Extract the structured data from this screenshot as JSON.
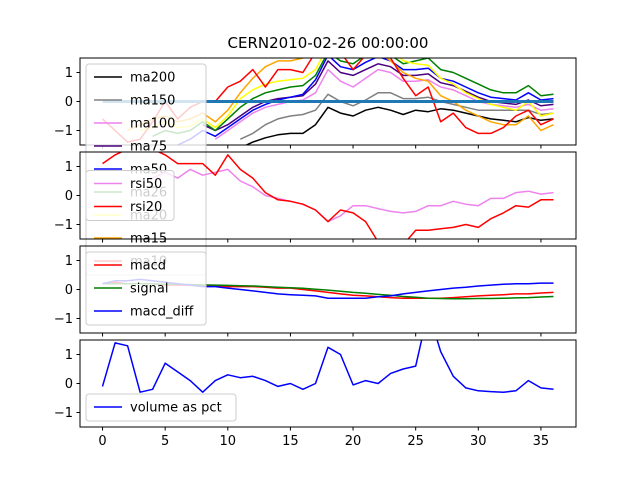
{
  "chart_data": {
    "title": "CERN2010-02-26 00:00:00",
    "x": [
      0,
      1,
      2,
      3,
      4,
      5,
      6,
      7,
      8,
      9,
      10,
      11,
      12,
      13,
      14,
      15,
      16,
      17,
      18,
      19,
      20,
      21,
      22,
      23,
      24,
      25,
      26,
      27,
      28,
      29,
      30,
      31,
      32,
      33,
      34,
      35,
      36
    ],
    "xticks": [
      0,
      5,
      10,
      15,
      20,
      25,
      30,
      35
    ],
    "xlim": [
      -1.8,
      37.8
    ],
    "panels": [
      {
        "type": "line",
        "ylim": [
          -1.5,
          1.5
        ],
        "yticks": [
          -1,
          0,
          1
        ],
        "legend": "upper-left",
        "series": [
          {
            "name": "ma200",
            "color": "#000000",
            "values": [
              null,
              null,
              null,
              null,
              null,
              null,
              null,
              null,
              null,
              null,
              -1.8,
              -1.6,
              -1.4,
              -1.25,
              -1.15,
              -1.1,
              -1.1,
              -0.8,
              -0.2,
              -0.4,
              -0.5,
              -0.3,
              -0.2,
              -0.3,
              -0.45,
              -0.3,
              -0.35,
              -0.25,
              -0.3,
              -0.4,
              -0.5,
              -0.6,
              -0.65,
              -0.7,
              -0.55,
              -0.65,
              -0.6
            ]
          },
          {
            "name": "ma150",
            "color": "#808080",
            "values": [
              null,
              null,
              null,
              null,
              null,
              null,
              null,
              null,
              null,
              null,
              null,
              -1.3,
              -1.1,
              -0.8,
              -0.6,
              -0.5,
              -0.45,
              -0.3,
              0.25,
              0.0,
              -0.15,
              0.05,
              0.3,
              0.3,
              0.1,
              0.1,
              0.15,
              0.0,
              -0.1,
              -0.2,
              -0.3,
              -0.3,
              -0.3,
              -0.3,
              -0.3,
              -0.45,
              -0.4
            ]
          },
          {
            "name": "ma100",
            "color": "#ee82ee",
            "values": [
              null,
              null,
              null,
              null,
              null,
              null,
              null,
              null,
              null,
              -1.3,
              -1.0,
              -0.7,
              -0.4,
              -0.2,
              -0.1,
              0.0,
              0.05,
              0.3,
              1.1,
              0.7,
              0.5,
              0.8,
              1.1,
              1.0,
              0.7,
              0.7,
              0.75,
              0.5,
              0.4,
              0.2,
              0.0,
              -0.1,
              -0.15,
              -0.2,
              -0.1,
              -0.3,
              -0.25
            ]
          },
          {
            "name": "ma75",
            "color": "#4b0082",
            "values": [
              null,
              null,
              null,
              null,
              null,
              null,
              null,
              null,
              -0.8,
              -1.0,
              -0.8,
              -0.5,
              -0.2,
              0.0,
              0.1,
              0.15,
              0.2,
              0.6,
              1.4,
              1.0,
              0.9,
              1.1,
              1.3,
              1.2,
              0.9,
              0.9,
              0.95,
              0.65,
              0.55,
              0.35,
              0.15,
              0.0,
              -0.05,
              -0.1,
              0.05,
              -0.15,
              -0.1
            ]
          },
          {
            "name": "ma50",
            "color": "#0000ff",
            "values": [
              null,
              null,
              null,
              null,
              null,
              null,
              -1.5,
              -1.3,
              -1.0,
              -1.2,
              -0.9,
              -0.6,
              -0.3,
              -0.1,
              0.05,
              0.15,
              0.25,
              0.75,
              1.6,
              1.2,
              1.1,
              1.35,
              1.55,
              1.4,
              1.1,
              1.1,
              1.15,
              0.8,
              0.7,
              0.5,
              0.3,
              0.15,
              0.1,
              0.05,
              0.3,
              0.05,
              0.1
            ]
          },
          {
            "name": "ma26",
            "color": "#008000",
            "values": [
              null,
              null,
              null,
              null,
              -1.2,
              -1.0,
              -1.1,
              -1.0,
              -0.7,
              -1.0,
              -0.6,
              -0.2,
              0.1,
              0.3,
              0.4,
              0.5,
              0.55,
              0.9,
              1.7,
              1.4,
              1.3,
              1.6,
              1.8,
              1.6,
              1.3,
              1.4,
              1.5,
              1.1,
              1.0,
              0.8,
              0.6,
              0.4,
              0.3,
              0.3,
              0.55,
              0.2,
              0.25
            ]
          },
          {
            "name": "ma20",
            "color": "#ffff00",
            "values": [
              null,
              null,
              null,
              -1.0,
              -0.9,
              -0.7,
              -0.9,
              -0.85,
              -0.6,
              -0.9,
              -0.5,
              0.1,
              0.4,
              0.6,
              0.7,
              0.75,
              0.8,
              1.1,
              1.9,
              1.6,
              1.5,
              1.8,
              2.0,
              1.8,
              1.4,
              1.3,
              1.25,
              0.8,
              0.6,
              0.3,
              0.1,
              -0.1,
              -0.2,
              -0.3,
              0.0,
              -0.5,
              -0.4
            ]
          },
          {
            "name": "ma15",
            "color": "#ffa500",
            "values": [
              null,
              null,
              -1.0,
              -0.8,
              -0.6,
              -0.5,
              -0.7,
              -0.6,
              -0.4,
              -0.7,
              -0.3,
              0.3,
              0.8,
              1.2,
              1.4,
              1.4,
              1.5,
              1.7,
              2.2,
              1.8,
              1.6,
              1.8,
              1.7,
              1.4,
              1.0,
              0.8,
              0.7,
              0.2,
              0.0,
              -0.3,
              -0.5,
              -0.7,
              -0.8,
              -0.8,
              -0.5,
              -1.0,
              -0.8
            ]
          },
          {
            "name": "ma10",
            "color": "#ff0000",
            "values": [
              -0.6,
              -1.0,
              -1.4,
              -1.3,
              -0.7,
              0.0,
              -0.6,
              -0.2,
              0.0,
              0.0,
              0.5,
              0.7,
              1.1,
              0.5,
              1.1,
              1.1,
              1.0,
              1.7,
              2.5,
              1.7,
              1.1,
              1.6,
              1.7,
              1.5,
              0.8,
              0.2,
              0.5,
              -0.7,
              -0.4,
              -0.9,
              -1.1,
              -1.1,
              -0.9,
              -0.5,
              -0.3,
              -0.8,
              -0.6
            ]
          },
          {
            "name": "",
            "color": "#1f77b4",
            "width": 3,
            "values": [
              0,
              0,
              0,
              0,
              0,
              0,
              0,
              0,
              0,
              0,
              0,
              0,
              0,
              0,
              0,
              0,
              0,
              0,
              0,
              0,
              0,
              0,
              0,
              0,
              0,
              0,
              0,
              0,
              0,
              0,
              0,
              0,
              0,
              0,
              0,
              0,
              0
            ]
          }
        ]
      },
      {
        "type": "line",
        "ylim": [
          -1.5,
          1.5
        ],
        "yticks": [
          -1,
          0,
          1
        ],
        "legend": "center-left",
        "series": [
          {
            "name": "rsi50",
            "color": "#ee82ee",
            "values": [
              null,
              null,
              null,
              null,
              0.6,
              0.8,
              0.6,
              0.9,
              0.7,
              0.8,
              0.9,
              0.5,
              0.3,
              0.0,
              -0.1,
              -0.2,
              -0.3,
              -0.5,
              -0.9,
              -0.7,
              -0.35,
              -0.35,
              -0.45,
              -0.55,
              -0.6,
              -0.55,
              -0.35,
              -0.35,
              -0.2,
              -0.3,
              -0.35,
              -0.1,
              -0.1,
              0.1,
              0.15,
              0.05,
              0.1
            ]
          },
          {
            "name": "rsi20",
            "color": "#ff0000",
            "values": [
              1.1,
              1.4,
              1.6,
              1.7,
              1.6,
              1.4,
              1.1,
              1.1,
              1.1,
              0.7,
              1.4,
              0.9,
              0.6,
              0.1,
              -0.15,
              -0.2,
              -0.3,
              -0.5,
              -0.9,
              -0.5,
              -0.6,
              -0.9,
              -1.6,
              -1.7,
              -1.7,
              -1.2,
              -1.2,
              -1.15,
              -1.1,
              -1.0,
              -1.1,
              -0.8,
              -0.6,
              -0.35,
              -0.4,
              -0.15,
              -0.15
            ]
          }
        ]
      },
      {
        "type": "line",
        "ylim": [
          -1.5,
          1.5
        ],
        "yticks": [
          -1,
          0,
          1
        ],
        "legend": "upper-left",
        "series": [
          {
            "name": "macd",
            "color": "#ff0000",
            "values": [
              0.2,
              0.25,
              0.2,
              0.2,
              0.2,
              0.15,
              0.15,
              0.15,
              0.15,
              0.12,
              0.1,
              0.1,
              0.1,
              0.08,
              0.05,
              0.05,
              0.0,
              -0.05,
              -0.1,
              -0.15,
              -0.2,
              -0.22,
              -0.25,
              -0.28,
              -0.3,
              -0.3,
              -0.3,
              -0.3,
              -0.28,
              -0.25,
              -0.22,
              -0.2,
              -0.18,
              -0.15,
              -0.15,
              -0.12,
              -0.1
            ]
          },
          {
            "name": "signal",
            "color": "#008000",
            "values": [
              0.2,
              0.2,
              0.2,
              0.2,
              0.2,
              0.18,
              0.18,
              0.17,
              0.16,
              0.15,
              0.14,
              0.13,
              0.12,
              0.1,
              0.08,
              0.06,
              0.04,
              0.01,
              -0.02,
              -0.06,
              -0.1,
              -0.13,
              -0.17,
              -0.2,
              -0.24,
              -0.27,
              -0.3,
              -0.31,
              -0.32,
              -0.32,
              -0.31,
              -0.31,
              -0.3,
              -0.29,
              -0.28,
              -0.26,
              -0.24
            ]
          },
          {
            "name": "macd_diff",
            "color": "#0000ff",
            "values": [
              0.2,
              0.3,
              0.3,
              0.35,
              0.3,
              0.25,
              0.2,
              0.15,
              0.1,
              0.1,
              0.05,
              0.0,
              -0.05,
              -0.1,
              -0.15,
              -0.18,
              -0.2,
              -0.22,
              -0.3,
              -0.3,
              -0.3,
              -0.3,
              -0.25,
              -0.22,
              -0.15,
              -0.1,
              -0.05,
              0.0,
              0.05,
              0.08,
              0.12,
              0.15,
              0.18,
              0.2,
              0.2,
              0.22,
              0.22
            ]
          }
        ]
      },
      {
        "type": "line",
        "ylim": [
          -1.5,
          1.5
        ],
        "yticks": [
          -1,
          0,
          1
        ],
        "legend": "lower-left",
        "series": [
          {
            "name": "volume as pct",
            "color": "#0000ff",
            "values": [
              -0.1,
              1.4,
              1.3,
              -0.3,
              -0.2,
              0.7,
              0.4,
              0.1,
              -0.3,
              0.1,
              0.3,
              0.2,
              0.25,
              0.1,
              -0.1,
              0.0,
              -0.2,
              0.0,
              1.25,
              1.0,
              -0.05,
              0.1,
              0.0,
              0.35,
              0.5,
              0.6,
              2.5,
              1.1,
              0.25,
              -0.15,
              -0.25,
              -0.28,
              -0.3,
              -0.25,
              0.1,
              -0.15,
              -0.2
            ]
          }
        ]
      }
    ]
  }
}
